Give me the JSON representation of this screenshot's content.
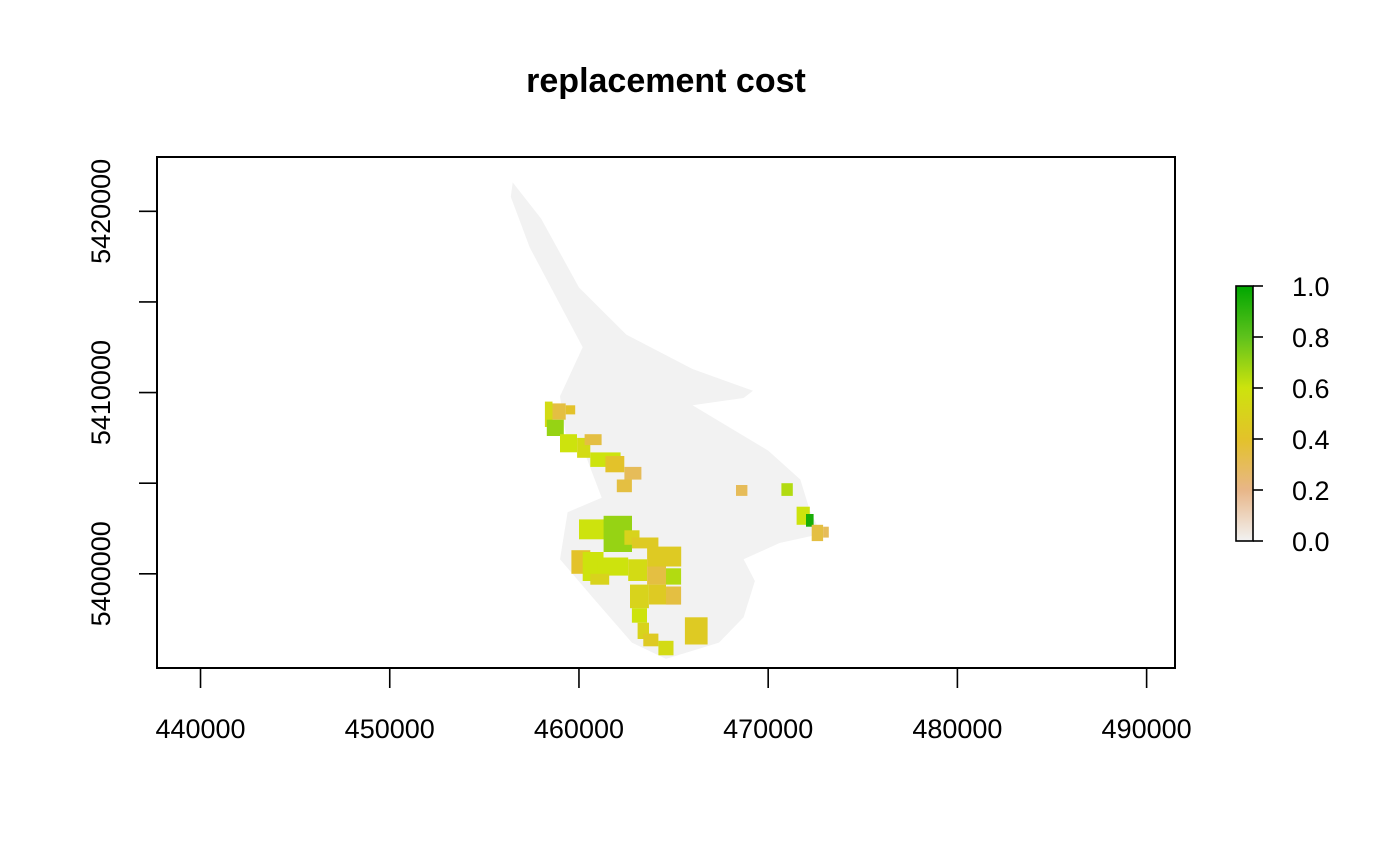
{
  "chart_data": {
    "type": "heatmap",
    "title": "replacement cost",
    "xlabel": "",
    "ylabel": "",
    "xlim": [
      437700,
      491500
    ],
    "ylim": [
      5394800,
      5423000
    ],
    "x_ticks": [
      440000,
      450000,
      460000,
      470000,
      480000,
      490000
    ],
    "x_tick_labels": [
      "440000",
      "450000",
      "460000",
      "470000",
      "480000",
      "490000"
    ],
    "y_ticks": [
      5400000,
      5405000,
      5410000,
      5415000,
      5420000
    ],
    "y_tick_labels": [
      "5400000",
      "",
      "5410000",
      "",
      "5420000"
    ],
    "legend": {
      "placement": "right",
      "range": [
        0,
        1
      ],
      "ticks": [
        0.0,
        0.2,
        0.4,
        0.6,
        0.8,
        1.0
      ],
      "tick_labels": [
        "0.0",
        "0.2",
        "0.4",
        "0.6",
        "0.8",
        "1.0"
      ],
      "color_stops": [
        {
          "value": 0.0,
          "color": "#f2f2f2"
        },
        {
          "value": 0.2,
          "color": "#e8b688"
        },
        {
          "value": 0.4,
          "color": "#e3c22a"
        },
        {
          "value": 0.6,
          "color": "#cde30d"
        },
        {
          "value": 0.8,
          "color": "#5fc21c"
        },
        {
          "value": 1.0,
          "color": "#00a600"
        }
      ]
    },
    "background_region": {
      "color": "#f2f2f2",
      "outline": [
        [
          456500,
          5421600
        ],
        [
          458000,
          5419600
        ],
        [
          460000,
          5415800
        ],
        [
          462500,
          5413200
        ],
        [
          466000,
          5411300
        ],
        [
          469200,
          5410100
        ],
        [
          468700,
          5409700
        ],
        [
          466000,
          5409300
        ],
        [
          470000,
          5406800
        ],
        [
          471700,
          5405200
        ],
        [
          472200,
          5403500
        ],
        [
          472800,
          5402200
        ],
        [
          470600,
          5401700
        ],
        [
          468700,
          5400800
        ],
        [
          469300,
          5399600
        ],
        [
          468700,
          5397600
        ],
        [
          467400,
          5396200
        ],
        [
          464600,
          5395300
        ],
        [
          462800,
          5396200
        ],
        [
          460800,
          5398600
        ],
        [
          459000,
          5400800
        ],
        [
          459400,
          5403400
        ],
        [
          461200,
          5404200
        ],
        [
          460400,
          5406400
        ],
        [
          459300,
          5407700
        ],
        [
          459000,
          5409800
        ],
        [
          460200,
          5412500
        ],
        [
          457400,
          5418000
        ],
        [
          456400,
          5420800
        ]
      ]
    },
    "patches": [
      {
        "x": [
          458200,
          458600
        ],
        "y": [
          5408100,
          5409500
        ],
        "value": 0.55
      },
      {
        "x": [
          458600,
          459300
        ],
        "y": [
          5408500,
          5409400
        ],
        "value": 0.35
      },
      {
        "x": [
          458300,
          459200
        ],
        "y": [
          5407600,
          5408500
        ],
        "value": 0.7
      },
      {
        "x": [
          459300,
          459800
        ],
        "y": [
          5408800,
          5409300
        ],
        "value": 0.4
      },
      {
        "x": [
          459000,
          459900
        ],
        "y": [
          5406700,
          5407700
        ],
        "value": 0.6
      },
      {
        "x": [
          459900,
          460600
        ],
        "y": [
          5406400,
          5407500
        ],
        "value": 0.55
      },
      {
        "x": [
          460300,
          461200
        ],
        "y": [
          5407100,
          5407700
        ],
        "value": 0.35
      },
      {
        "x": [
          460600,
          462200
        ],
        "y": [
          5405900,
          5406700
        ],
        "value": 0.6
      },
      {
        "x": [
          461400,
          462400
        ],
        "y": [
          5405600,
          5406500
        ],
        "value": 0.4
      },
      {
        "x": [
          462400,
          463300
        ],
        "y": [
          5405200,
          5405900
        ],
        "value": 0.3
      },
      {
        "x": [
          462000,
          462800
        ],
        "y": [
          5404500,
          5405200
        ],
        "value": 0.35
      },
      {
        "x": [
          460000,
          461400
        ],
        "y": [
          5401900,
          5403000
        ],
        "value": 0.6
      },
      {
        "x": [
          461300,
          462800
        ],
        "y": [
          5401200,
          5403200
        ],
        "value": 0.7
      },
      {
        "x": [
          462400,
          463200
        ],
        "y": [
          5401600,
          5402400
        ],
        "value": 0.5
      },
      {
        "x": [
          462800,
          464200
        ],
        "y": [
          5401400,
          5402000
        ],
        "value": 0.45
      },
      {
        "x": [
          459600,
          460600
        ],
        "y": [
          5400000,
          5401300
        ],
        "value": 0.4
      },
      {
        "x": [
          460200,
          461300
        ],
        "y": [
          5399600,
          5401200
        ],
        "value": 0.6
      },
      {
        "x": [
          461000,
          462600
        ],
        "y": [
          5399900,
          5400900
        ],
        "value": 0.6
      },
      {
        "x": [
          460600,
          461600
        ],
        "y": [
          5399400,
          5400000
        ],
        "value": 0.5
      },
      {
        "x": [
          462600,
          463600
        ],
        "y": [
          5399600,
          5400800
        ],
        "value": 0.55
      },
      {
        "x": [
          463600,
          465400
        ],
        "y": [
          5400400,
          5401500
        ],
        "value": 0.45
      },
      {
        "x": [
          463600,
          464600
        ],
        "y": [
          5399400,
          5400400
        ],
        "value": 0.35
      },
      {
        "x": [
          464600,
          465400
        ],
        "y": [
          5399400,
          5400300
        ],
        "value": 0.65
      },
      {
        "x": [
          462700,
          463700
        ],
        "y": [
          5398100,
          5399400
        ],
        "value": 0.5
      },
      {
        "x": [
          463700,
          464600
        ],
        "y": [
          5398300,
          5399400
        ],
        "value": 0.45
      },
      {
        "x": [
          464600,
          465400
        ],
        "y": [
          5398300,
          5399300
        ],
        "value": 0.35
      },
      {
        "x": [
          462800,
          463600
        ],
        "y": [
          5397300,
          5398100
        ],
        "value": 0.6
      },
      {
        "x": [
          463100,
          463700
        ],
        "y": [
          5396400,
          5397300
        ],
        "value": 0.5
      },
      {
        "x": [
          463400,
          464200
        ],
        "y": [
          5396000,
          5396700
        ],
        "value": 0.45
      },
      {
        "x": [
          464200,
          465000
        ],
        "y": [
          5395500,
          5396300
        ],
        "value": 0.55
      },
      {
        "x": [
          465600,
          466800
        ],
        "y": [
          5396100,
          5397600
        ],
        "value": 0.45
      },
      {
        "x": [
          468300,
          468900
        ],
        "y": [
          5404300,
          5404900
        ],
        "value": 0.3
      },
      {
        "x": [
          470700,
          471300
        ],
        "y": [
          5404300,
          5405000
        ],
        "value": 0.65
      },
      {
        "x": [
          471500,
          472200
        ],
        "y": [
          5402700,
          5403700
        ],
        "value": 0.6
      },
      {
        "x": [
          472000,
          472400
        ],
        "y": [
          5402600,
          5403300
        ],
        "value": 0.95
      },
      {
        "x": [
          472300,
          472900
        ],
        "y": [
          5401800,
          5402700
        ],
        "value": 0.35
      },
      {
        "x": [
          472900,
          473200
        ],
        "y": [
          5402000,
          5402600
        ],
        "value": 0.3
      }
    ],
    "grid": false
  }
}
